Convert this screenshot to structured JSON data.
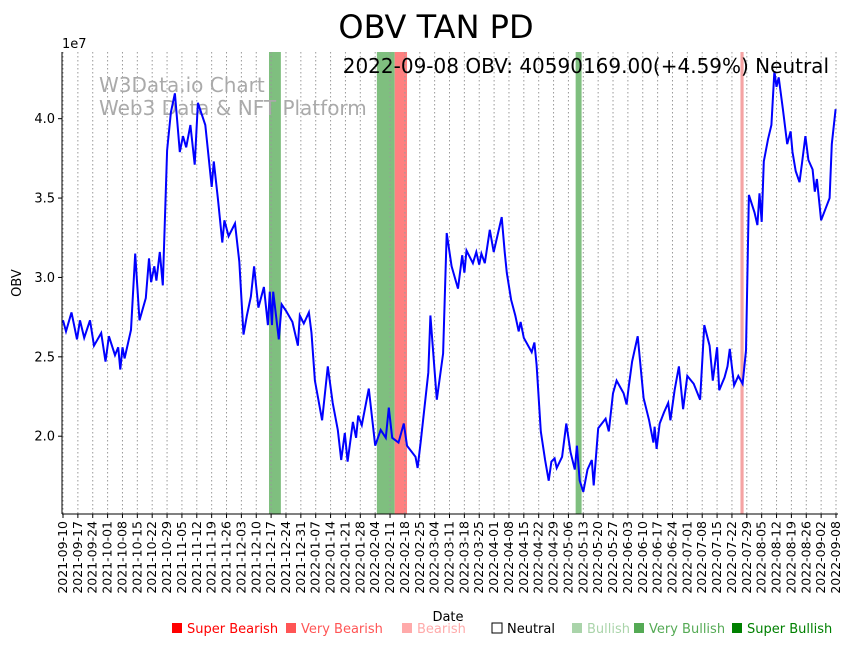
{
  "chart_data": {
    "type": "line",
    "title": "OBV TAN PD",
    "subtitle": "2022-09-08 OBV: 40590169.00(+4.59%) Neutral",
    "watermark": [
      "W3Data.io Chart",
      "Web3 Data & NFT Platform"
    ],
    "xlabel": "Date",
    "ylabel": "OBV",
    "y_offset_label": "1e7",
    "x_start_date": "2021-09-10",
    "x_unit": "days since start",
    "xlim": [
      0,
      364
    ],
    "ylim": [
      1.51,
      4.42
    ],
    "y_ticks": [
      2.0,
      2.5,
      3.0,
      3.5,
      4.0
    ],
    "y_tick_labels": [
      "2.0",
      "2.5",
      "3.0",
      "3.5",
      "4.0"
    ],
    "x_tick_labels": [
      "2021-09-10",
      "2021-09-17",
      "2021-09-24",
      "2021-10-01",
      "2021-10-08",
      "2021-10-15",
      "2021-10-22",
      "2021-10-29",
      "2021-11-05",
      "2021-11-12",
      "2021-11-19",
      "2021-11-26",
      "2021-12-03",
      "2021-12-10",
      "2021-12-17",
      "2021-12-24",
      "2021-12-31",
      "2022-01-07",
      "2022-01-14",
      "2022-01-21",
      "2022-01-28",
      "2022-02-04",
      "2022-02-11",
      "2022-02-18",
      "2022-02-25",
      "2022-03-04",
      "2022-03-11",
      "2022-03-18",
      "2022-03-25",
      "2022-04-01",
      "2022-04-08",
      "2022-04-15",
      "2022-04-22",
      "2022-04-29",
      "2022-05-06",
      "2022-05-13",
      "2022-05-20",
      "2022-05-27",
      "2022-06-03",
      "2022-06-10",
      "2022-06-17",
      "2022-06-24",
      "2022-07-01",
      "2022-07-08",
      "2022-07-15",
      "2022-07-22",
      "2022-07-29",
      "2022-08-05",
      "2022-08-12",
      "2022-08-19",
      "2022-08-26",
      "2022-09-02",
      "2022-09-08"
    ],
    "grid": "vertical dotted",
    "series": [
      {
        "name": "OBV",
        "color": "#0000ff",
        "points": [
          [
            0,
            2.73
          ],
          [
            1.4,
            2.66
          ],
          [
            4,
            2.78
          ],
          [
            6.6,
            2.61
          ],
          [
            8,
            2.73
          ],
          [
            10,
            2.62
          ],
          [
            12.7,
            2.73
          ],
          [
            14.6,
            2.57
          ],
          [
            18,
            2.65
          ],
          [
            20,
            2.47
          ],
          [
            21.6,
            2.63
          ],
          [
            24.5,
            2.51
          ],
          [
            26,
            2.56
          ],
          [
            27,
            2.42
          ],
          [
            28,
            2.56
          ],
          [
            29,
            2.49
          ],
          [
            32,
            2.67
          ],
          [
            34,
            3.15
          ],
          [
            36,
            2.73
          ],
          [
            39,
            2.87
          ],
          [
            40.5,
            3.12
          ],
          [
            41.5,
            2.97
          ],
          [
            43,
            3.07
          ],
          [
            44,
            2.98
          ],
          [
            45.6,
            3.16
          ],
          [
            47,
            2.95
          ],
          [
            49,
            3.8
          ],
          [
            50.8,
            4.04
          ],
          [
            52.7,
            4.16
          ],
          [
            55,
            3.79
          ],
          [
            56.5,
            3.89
          ],
          [
            58,
            3.82
          ],
          [
            60,
            3.96
          ],
          [
            62,
            3.71
          ],
          [
            63.5,
            4.1
          ],
          [
            67,
            3.96
          ],
          [
            70,
            3.57
          ],
          [
            71,
            3.73
          ],
          [
            73,
            3.49
          ],
          [
            75,
            3.22
          ],
          [
            76,
            3.36
          ],
          [
            78,
            3.26
          ],
          [
            81,
            3.34
          ],
          [
            83,
            3.1
          ],
          [
            85,
            2.64
          ],
          [
            86.6,
            2.76
          ],
          [
            88.5,
            2.88
          ],
          [
            90,
            3.07
          ],
          [
            92,
            2.81
          ],
          [
            94.6,
            2.94
          ],
          [
            96.5,
            2.7
          ],
          [
            97.4,
            2.91
          ],
          [
            98.4,
            2.7
          ],
          [
            99,
            2.91
          ],
          [
            101.6,
            2.61
          ],
          [
            103,
            2.83
          ],
          [
            105,
            2.79
          ],
          [
            108,
            2.72
          ],
          [
            110.6,
            2.57
          ],
          [
            111.5,
            2.76
          ],
          [
            113.4,
            2.71
          ],
          [
            115.8,
            2.78
          ],
          [
            117,
            2.65
          ],
          [
            118.6,
            2.35
          ],
          [
            120,
            2.25
          ],
          [
            122,
            2.1
          ],
          [
            124.7,
            2.44
          ],
          [
            127,
            2.21
          ],
          [
            129.4,
            2.04
          ],
          [
            131,
            1.85
          ],
          [
            132.7,
            2.02
          ],
          [
            134,
            1.84
          ],
          [
            136.5,
            2.09
          ],
          [
            138,
            1.99
          ],
          [
            139,
            2.13
          ],
          [
            140.7,
            2.07
          ],
          [
            144,
            2.3
          ],
          [
            147,
            1.94
          ],
          [
            149.6,
            2.04
          ],
          [
            152,
            1.99
          ],
          [
            153.4,
            2.18
          ],
          [
            155,
            1.99
          ],
          [
            158,
            1.96
          ],
          [
            160.5,
            2.08
          ],
          [
            162,
            1.94
          ],
          [
            166,
            1.87
          ],
          [
            167,
            1.8
          ],
          [
            168.5,
            1.97
          ],
          [
            172,
            2.4
          ],
          [
            173,
            2.76
          ],
          [
            176,
            2.23
          ],
          [
            179,
            2.52
          ],
          [
            180.7,
            3.28
          ],
          [
            183,
            3.07
          ],
          [
            186,
            2.93
          ],
          [
            188,
            3.14
          ],
          [
            189,
            3.03
          ],
          [
            190,
            3.17
          ],
          [
            193,
            3.09
          ],
          [
            194.6,
            3.16
          ],
          [
            196,
            3.08
          ],
          [
            197,
            3.15
          ],
          [
            198.6,
            3.09
          ],
          [
            201,
            3.3
          ],
          [
            202.8,
            3.16
          ],
          [
            206.6,
            3.38
          ],
          [
            208,
            3.16
          ],
          [
            209,
            3.03
          ],
          [
            211,
            2.86
          ],
          [
            213,
            2.76
          ],
          [
            214.6,
            2.66
          ],
          [
            215.5,
            2.72
          ],
          [
            217,
            2.62
          ],
          [
            220.7,
            2.53
          ],
          [
            222,
            2.59
          ],
          [
            223,
            2.45
          ],
          [
            225,
            2.03
          ],
          [
            227,
            1.85
          ],
          [
            228.7,
            1.72
          ],
          [
            230,
            1.84
          ],
          [
            231.5,
            1.86
          ],
          [
            232.5,
            1.8
          ],
          [
            235,
            1.87
          ],
          [
            237,
            2.08
          ],
          [
            239,
            1.9
          ],
          [
            241,
            1.79
          ],
          [
            242,
            1.94
          ],
          [
            243.3,
            1.72
          ],
          [
            245,
            1.65
          ],
          [
            247,
            1.79
          ],
          [
            249,
            1.85
          ],
          [
            249.9,
            1.69
          ],
          [
            252,
            2.05
          ],
          [
            255.5,
            2.11
          ],
          [
            257,
            2.03
          ],
          [
            259,
            2.27
          ],
          [
            260.7,
            2.35
          ],
          [
            264,
            2.27
          ],
          [
            265.4,
            2.2
          ],
          [
            266.4,
            2.31
          ],
          [
            268,
            2.47
          ],
          [
            270.6,
            2.63
          ],
          [
            273.4,
            2.24
          ],
          [
            276,
            2.1
          ],
          [
            278,
            1.96
          ],
          [
            278.6,
            2.06
          ],
          [
            279.5,
            1.92
          ],
          [
            281,
            2.08
          ],
          [
            283,
            2.15
          ],
          [
            285,
            2.21
          ],
          [
            286,
            2.1
          ],
          [
            288,
            2.29
          ],
          [
            290,
            2.44
          ],
          [
            292,
            2.17
          ],
          [
            294,
            2.38
          ],
          [
            297,
            2.33
          ],
          [
            300,
            2.23
          ],
          [
            302,
            2.7
          ],
          [
            304.5,
            2.57
          ],
          [
            306,
            2.35
          ],
          [
            308,
            2.56
          ],
          [
            309,
            2.29
          ],
          [
            311.5,
            2.37
          ],
          [
            312.9,
            2.44
          ],
          [
            314,
            2.55
          ],
          [
            316,
            2.32
          ],
          [
            318,
            2.38
          ],
          [
            320,
            2.33
          ],
          [
            321.6,
            2.54
          ],
          [
            323,
            3.52
          ],
          [
            325.6,
            3.41
          ],
          [
            327,
            3.33
          ],
          [
            328,
            3.53
          ],
          [
            329,
            3.35
          ],
          [
            330,
            3.73
          ],
          [
            332,
            3.87
          ],
          [
            333.6,
            3.96
          ],
          [
            335,
            4.3
          ],
          [
            336,
            4.2
          ],
          [
            337,
            4.26
          ],
          [
            339,
            4.06
          ],
          [
            341,
            3.84
          ],
          [
            342.6,
            3.92
          ],
          [
            343.5,
            3.79
          ],
          [
            345,
            3.67
          ],
          [
            346.8,
            3.6
          ],
          [
            348,
            3.72
          ],
          [
            349.6,
            3.89
          ],
          [
            351,
            3.74
          ],
          [
            353,
            3.68
          ],
          [
            354,
            3.54
          ],
          [
            355,
            3.62
          ],
          [
            357,
            3.36
          ],
          [
            361,
            3.5
          ],
          [
            362,
            3.84
          ],
          [
            363.8,
            4.06
          ]
        ]
      }
    ],
    "signal_bands": [
      {
        "start": 97,
        "end": 102.6,
        "signal": "Very Bullish",
        "color": "#7fbf7f"
      },
      {
        "start": 147.8,
        "end": 156.2,
        "signal": "Very Bullish",
        "color": "#7fbf7f"
      },
      {
        "start": 156.2,
        "end": 162,
        "signal": "Very Bearish",
        "color": "#ff8080"
      },
      {
        "start": 241.4,
        "end": 244.2,
        "signal": "Very Bullish",
        "color": "#7fbf7f"
      },
      {
        "start": 319,
        "end": 320.5,
        "signal": "Bearish",
        "color": "#f5a3a3"
      }
    ],
    "legend": {
      "placement": "bottom",
      "entries": [
        {
          "label": "Super Bearish",
          "color": "#ff0000",
          "fill": true
        },
        {
          "label": "Very Bearish",
          "color": "#ff5555",
          "fill": true
        },
        {
          "label": "Bearish",
          "color": "#ffaaaa",
          "fill": true
        },
        {
          "label": "Neutral",
          "color": "#000000",
          "fill": false
        },
        {
          "label": "Bullish",
          "color": "#aad4aa",
          "fill": true
        },
        {
          "label": "Very Bullish",
          "color": "#55aa55",
          "fill": true
        },
        {
          "label": "Super Bullish",
          "color": "#008000",
          "fill": true
        }
      ]
    }
  }
}
